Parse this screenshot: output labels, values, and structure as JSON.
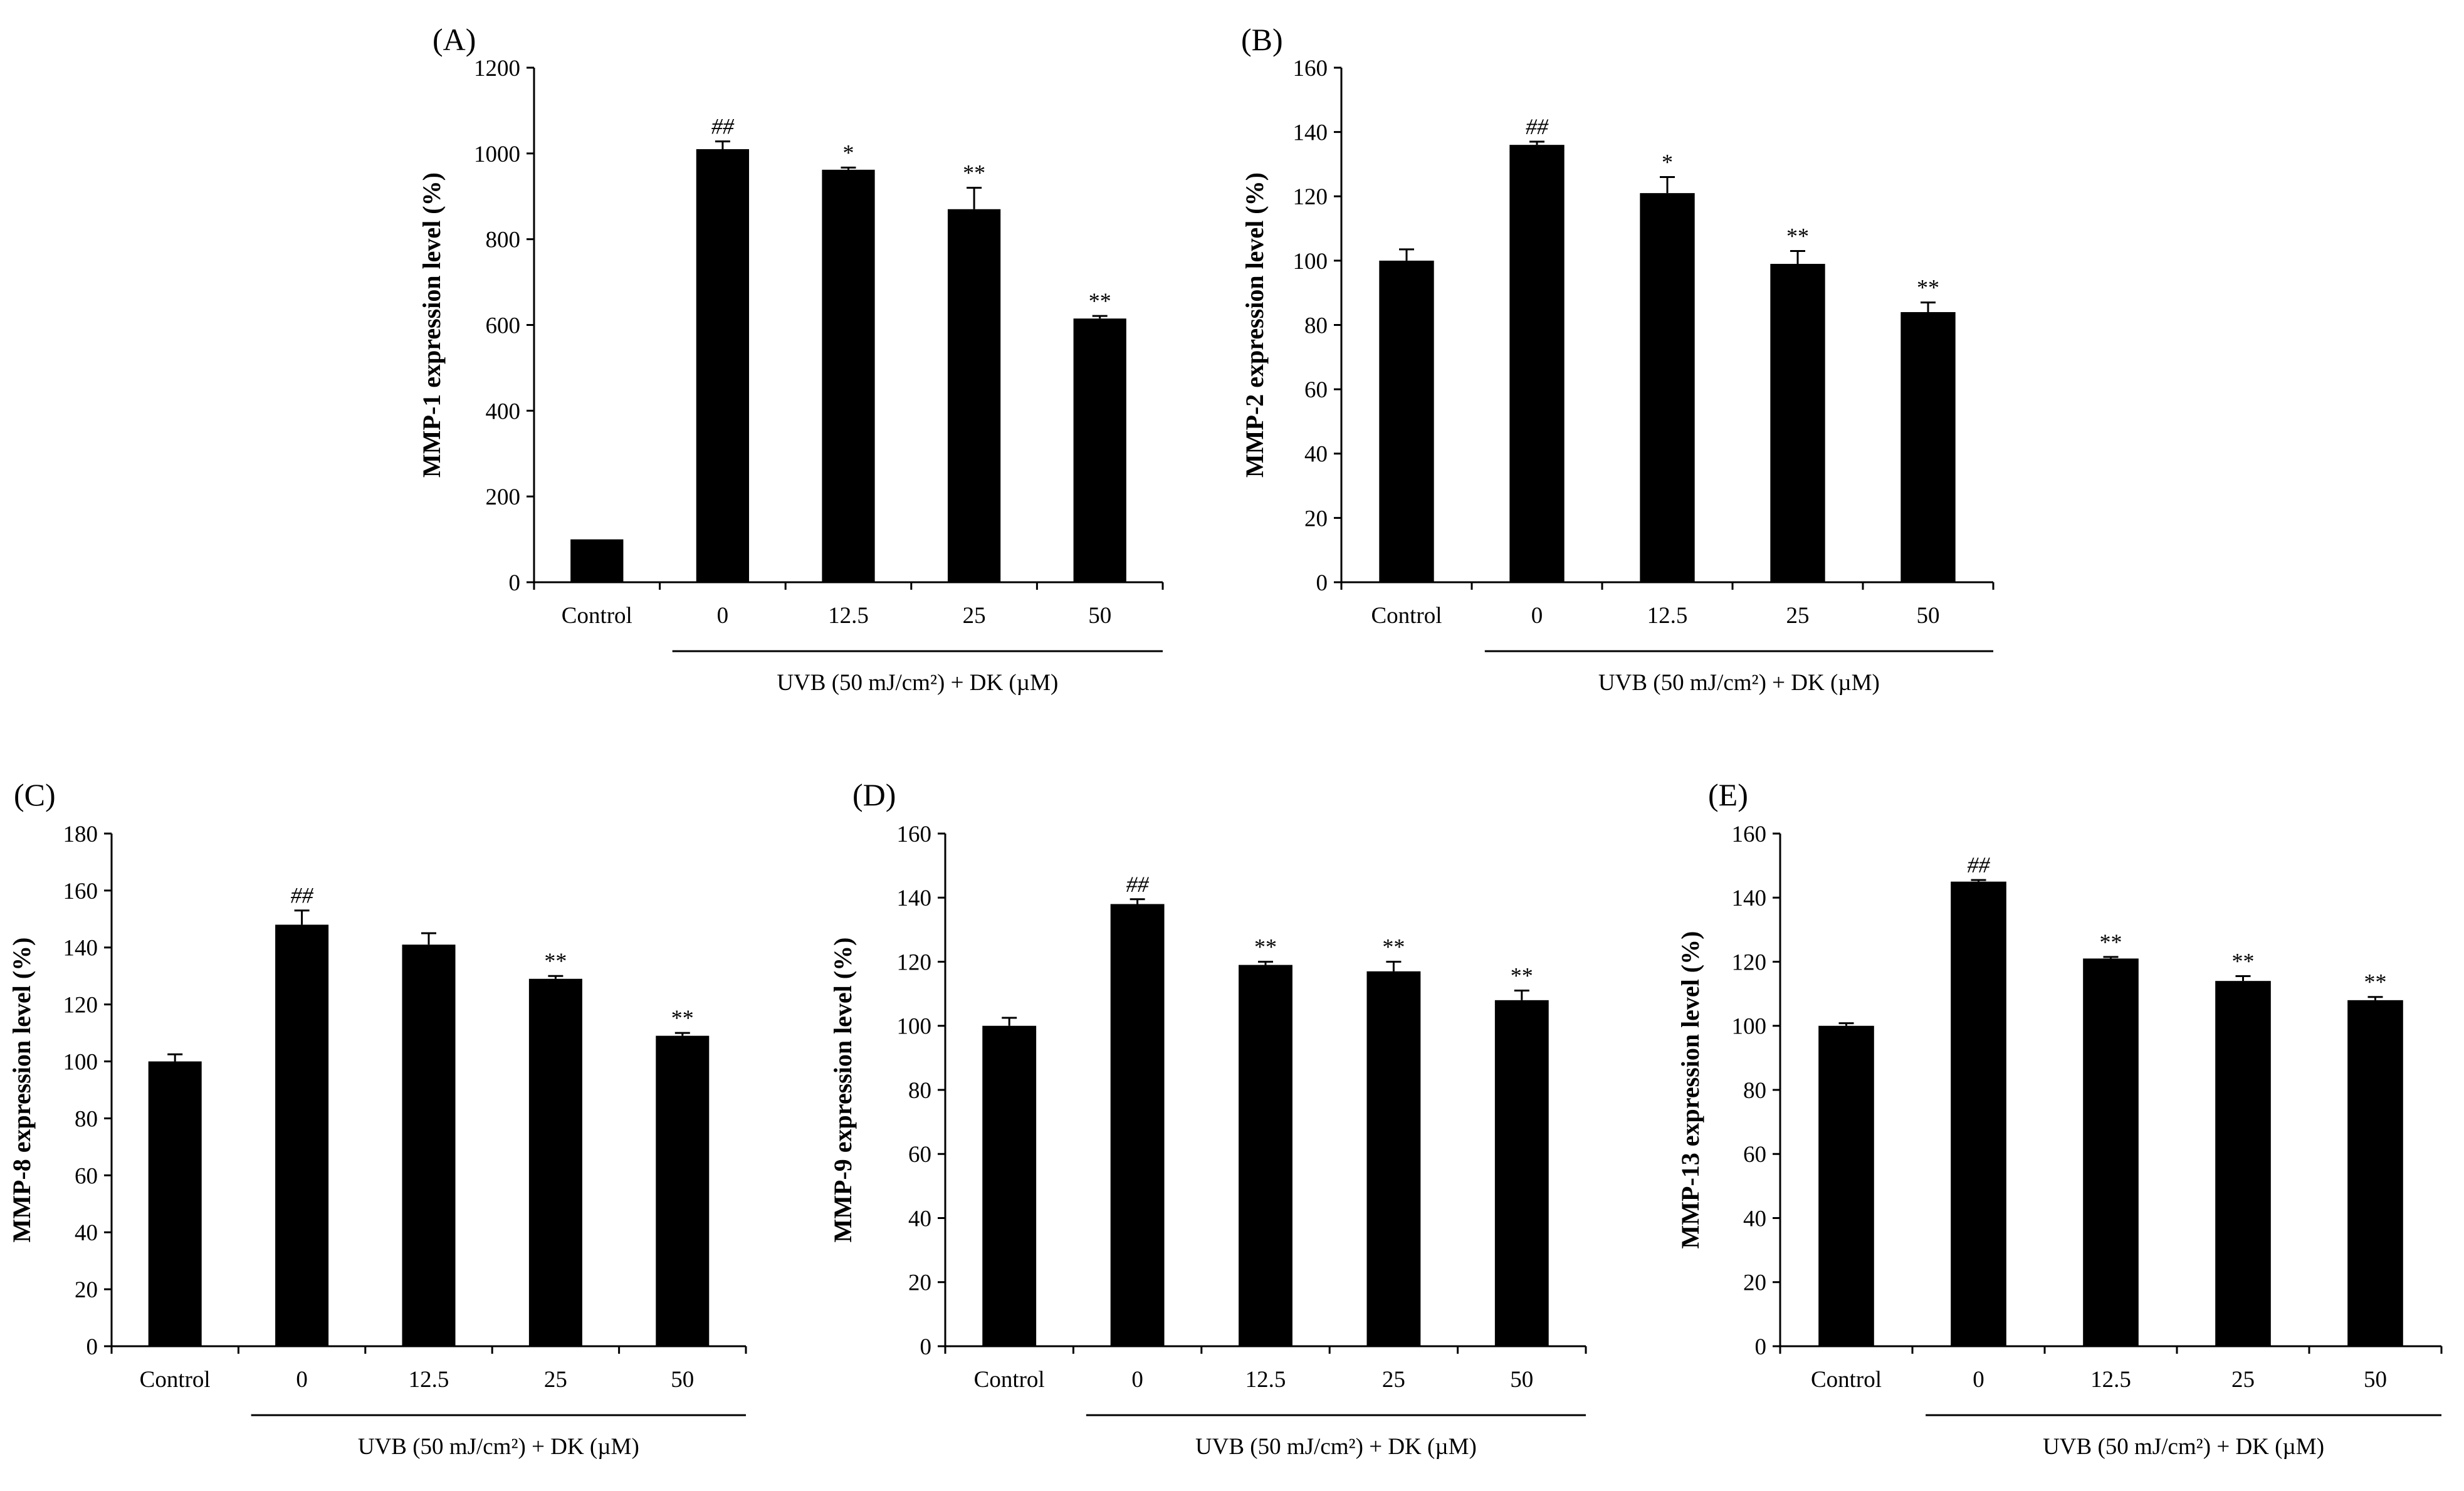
{
  "figure": {
    "treatment_label": "UVB (50 mJ/cm²)  + DK (µM)"
  },
  "chart_data": [
    {
      "panel": "(A)",
      "type": "bar",
      "ylabel": "MMP-1 expression level (%)",
      "ylim": [
        0,
        1200
      ],
      "yticks": [
        0,
        200,
        400,
        600,
        800,
        1000,
        1200
      ],
      "categories": [
        "Control",
        "0",
        "12.5",
        "25",
        "50"
      ],
      "values": [
        100,
        1010,
        962,
        870,
        615
      ],
      "errors": [
        0,
        18,
        5,
        50,
        6
      ],
      "annotations": [
        "",
        "##",
        "*",
        "**",
        "**"
      ],
      "xlabel": "UVB (50 mJ/cm²)  + DK (µM)"
    },
    {
      "panel": "(B)",
      "type": "bar",
      "ylabel": "MMP-2 expression level (%)",
      "ylim": [
        0,
        160
      ],
      "yticks": [
        0,
        20,
        40,
        60,
        80,
        100,
        120,
        140,
        160
      ],
      "categories": [
        "Control",
        "0",
        "12.5",
        "25",
        "50"
      ],
      "values": [
        100,
        136,
        121,
        99,
        84
      ],
      "errors": [
        3.5,
        1,
        5,
        4,
        3
      ],
      "annotations": [
        "",
        "##",
        "*",
        "**",
        "**"
      ],
      "xlabel": "UVB (50 mJ/cm²)  + DK (µM)"
    },
    {
      "panel": "(C)",
      "type": "bar",
      "ylabel": "MMP-8 expression level (%)",
      "ylim": [
        0,
        180
      ],
      "yticks": [
        0,
        20,
        40,
        60,
        80,
        100,
        120,
        140,
        160,
        180
      ],
      "categories": [
        "Control",
        "0",
        "12.5",
        "25",
        "50"
      ],
      "values": [
        100,
        148,
        141,
        129,
        109
      ],
      "errors": [
        2.5,
        5,
        4,
        1,
        1
      ],
      "annotations": [
        "",
        "##",
        "",
        "**",
        "**"
      ],
      "xlabel": "UVB (50 mJ/cm²)  + DK (µM)"
    },
    {
      "panel": "(D)",
      "type": "bar",
      "ylabel": "MMP-9 expression level (%)",
      "ylim": [
        0,
        160
      ],
      "yticks": [
        0,
        20,
        40,
        60,
        80,
        100,
        120,
        140,
        160
      ],
      "categories": [
        "Control",
        "0",
        "12.5",
        "25",
        "50"
      ],
      "values": [
        100,
        138,
        119,
        117,
        108
      ],
      "errors": [
        2.5,
        1.5,
        1,
        3,
        3
      ],
      "annotations": [
        "",
        "##",
        "**",
        "**",
        "**"
      ],
      "xlabel": "UVB (50 mJ/cm²)  + DK (µM)"
    },
    {
      "panel": "(E)",
      "type": "bar",
      "ylabel": "MMP-13 expression level (%)",
      "ylim": [
        0,
        160
      ],
      "yticks": [
        0,
        20,
        40,
        60,
        80,
        100,
        120,
        140,
        160
      ],
      "categories": [
        "Control",
        "0",
        "12.5",
        "25",
        "50"
      ],
      "values": [
        100,
        145,
        121,
        114,
        108
      ],
      "errors": [
        0.8,
        0.5,
        0.5,
        1.5,
        1
      ],
      "annotations": [
        "",
        "##",
        "**",
        "**",
        "**"
      ],
      "xlabel": "UVB (50 mJ/cm²)  + DK (µM)"
    }
  ]
}
